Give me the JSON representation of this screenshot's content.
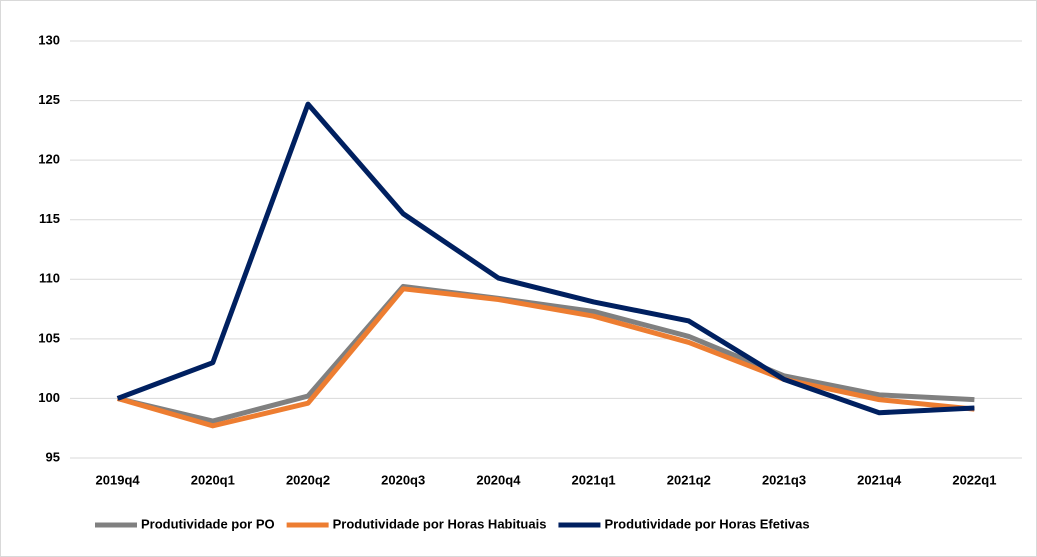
{
  "chart_data": {
    "type": "line",
    "categories": [
      "2019q4",
      "2020q1",
      "2020q2",
      "2020q3",
      "2020q4",
      "2021q1",
      "2021q2",
      "2021q3",
      "2021q4",
      "2022q1"
    ],
    "series": [
      {
        "name": "Produtividade por PO",
        "color": "#808080",
        "values": [
          100,
          98.1,
          100.2,
          109.4,
          108.4,
          107.3,
          105.2,
          101.9,
          100.3,
          99.9
        ]
      },
      {
        "name": "Produtividade por Horas Habituais",
        "color": "#ED7D31",
        "values": [
          100,
          97.7,
          99.6,
          109.2,
          108.3,
          106.9,
          104.7,
          101.6,
          99.9,
          99.1
        ]
      },
      {
        "name": "Produtividade por Horas Efetivas",
        "color": "#002060",
        "values": [
          100,
          103.0,
          124.7,
          115.5,
          110.1,
          108.1,
          106.5,
          101.6,
          98.8,
          99.2
        ]
      }
    ],
    "ylim": [
      95,
      130
    ],
    "yticks": [
      95,
      100,
      105,
      110,
      115,
      120,
      125,
      130
    ],
    "grid": true,
    "legend": "bottom"
  }
}
